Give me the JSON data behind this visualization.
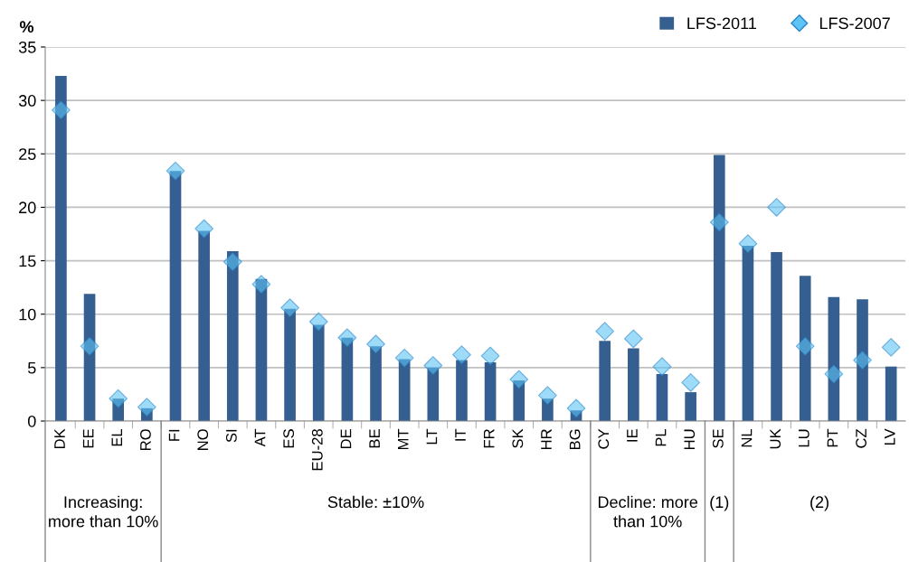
{
  "chart_data": {
    "type": "bar",
    "ylabel": "%",
    "categories": [
      "DK",
      "EE",
      "EL",
      "RO",
      "FI",
      "NO",
      "SI",
      "AT",
      "ES",
      "EU-28",
      "DE",
      "BE",
      "MT",
      "LT",
      "IT",
      "FR",
      "SK",
      "HR",
      "BG",
      "CY",
      "IE",
      "PL",
      "HU",
      "SE",
      "NL",
      "UK",
      "LU",
      "PT",
      "CZ",
      "LV"
    ],
    "series": [
      {
        "name": "LFS-2011",
        "color": "#365f91",
        "values": [
          32.3,
          11.9,
          2.1,
          1.2,
          23.4,
          17.8,
          15.9,
          13.3,
          10.5,
          9.0,
          7.8,
          7.0,
          5.8,
          5.0,
          5.7,
          5.5,
          3.8,
          2.1,
          1.0,
          7.5,
          6.8,
          4.4,
          2.7,
          24.9,
          16.4,
          15.8,
          13.6,
          11.6,
          11.4,
          5.1
        ]
      },
      {
        "name": "LFS-2007",
        "type": "scatter",
        "marker": "diamond",
        "color": "#5ec3f5",
        "values": [
          29.1,
          7.0,
          2.1,
          1.3,
          23.4,
          18.0,
          14.9,
          12.8,
          10.6,
          9.3,
          7.8,
          7.2,
          5.9,
          5.2,
          6.2,
          6.1,
          3.9,
          2.4,
          1.2,
          8.4,
          7.7,
          5.1,
          3.6,
          18.6,
          16.6,
          20.0,
          7.0,
          4.4,
          5.7,
          6.9
        ]
      }
    ],
    "ylim": [
      0,
      35
    ],
    "yticks": [
      0,
      5,
      10,
      15,
      20,
      25,
      30,
      35
    ],
    "grid": "y",
    "legend": "top right",
    "annotations": [
      "Increasing: more than 10%",
      "Stable: ±10%",
      "Decline: more than 10%",
      "(1)",
      "(2)"
    ]
  }
}
